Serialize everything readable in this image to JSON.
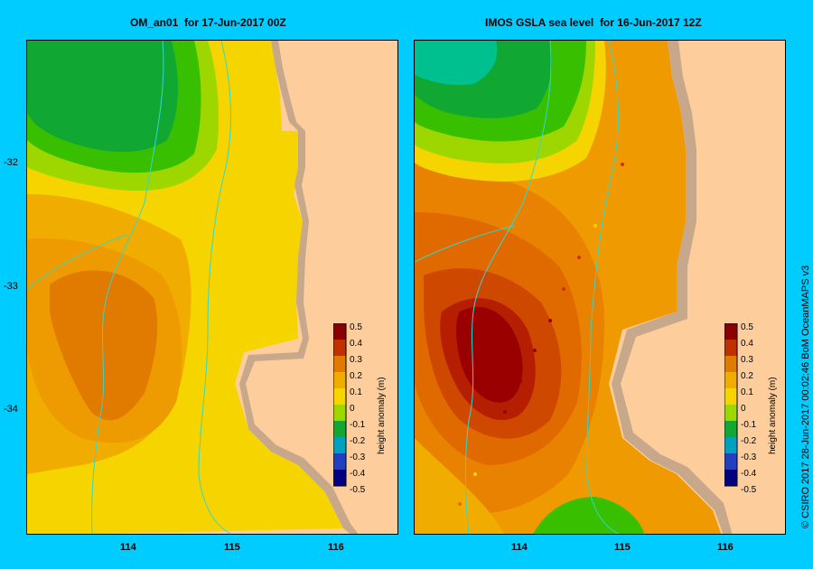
{
  "left_panel": {
    "title": "OM_an01  for 17-Jun-2017 00Z",
    "colorbar": {
      "title": "height anomaly (m)",
      "ticks": [
        "0.5",
        "0.4",
        "0.3",
        "0.2",
        "0.1",
        "0",
        "-0.1",
        "-0.2",
        "-0.3",
        "-0.4",
        "-0.5"
      ]
    }
  },
  "right_panel": {
    "title": "IMOS GSLA sea level  for 16-Jun-2017 12Z",
    "colorbar": {
      "title": "height anomaly (m)",
      "ticks": [
        "0.5",
        "0.4",
        "0.3",
        "0.2",
        "0.1",
        "0",
        "-0.1",
        "-0.2",
        "-0.3",
        "-0.4",
        "-0.5"
      ]
    }
  },
  "x_ticks": [
    "114",
    "115",
    "116"
  ],
  "y_ticks": [
    "-32",
    "-33",
    "-34"
  ],
  "credit": "© CSIRO 2017   28-Jun-2017 00:02:46 BoM OceanMAPS v3",
  "colors": {
    "background": "#00ccff",
    "land": "#fdcd9c",
    "coast": "#c8a88a",
    "bathymetry_contour": "#2fd9d0"
  }
}
